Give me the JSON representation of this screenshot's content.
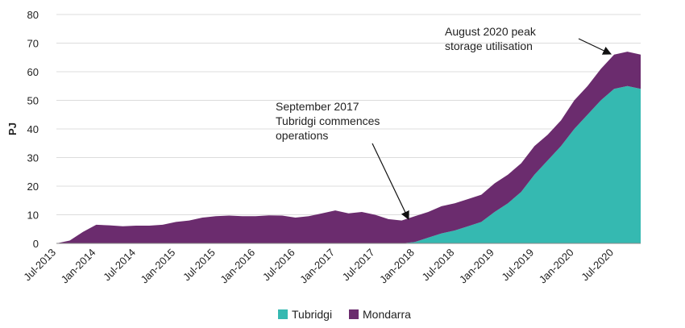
{
  "chart_data": {
    "type": "stacked-area",
    "y_label": "PJ",
    "categories": [
      "Jul-2013",
      null,
      null,
      "Jan-2014",
      null,
      null,
      "Jul-2014",
      null,
      null,
      "Jan-2015",
      null,
      null,
      "Jul-2015",
      null,
      null,
      "Jan-2016",
      null,
      null,
      "Jul-2016",
      null,
      null,
      "Jan-2017",
      null,
      null,
      "Jul-2017",
      null,
      null,
      "Jan-2018",
      null,
      null,
      "Jul-2018",
      null,
      null,
      "Jan-2019",
      null,
      null,
      "Jul-2019",
      null,
      null,
      "Jan-2020",
      null,
      null,
      "Jul-2020",
      null,
      null
    ],
    "series": [
      {
        "name": "Tubridgi",
        "color": "#35b9b1",
        "values": [
          0,
          0,
          0,
          0,
          0,
          0,
          0,
          0,
          0,
          0,
          0,
          0,
          0,
          0,
          0,
          0,
          0,
          0,
          0,
          0,
          0,
          0,
          0,
          0,
          0,
          0,
          0,
          0.5,
          2,
          3.5,
          4.5,
          6,
          7.5,
          11,
          14,
          18,
          24,
          29,
          34,
          40,
          45,
          50,
          54,
          55,
          54
        ]
      },
      {
        "name": "Mondarra",
        "color": "#6b2c6e",
        "values": [
          0,
          1,
          4,
          6.5,
          6.3,
          6,
          6.2,
          6.2,
          6.5,
          7.5,
          8,
          9,
          9.5,
          9.7,
          9.5,
          9.5,
          9.8,
          9.7,
          9,
          9.5,
          10.5,
          11.5,
          10.5,
          11,
          10,
          8.5,
          8,
          9,
          9,
          9.5,
          9.5,
          9.5,
          9.5,
          10,
          10,
          10,
          10,
          9,
          9,
          10,
          10,
          11,
          12,
          12,
          12
        ]
      }
    ],
    "ylim": [
      0,
      80
    ],
    "yticks": [
      0,
      10,
      20,
      30,
      40,
      50,
      60,
      70,
      80
    ],
    "grid": true,
    "legend": "bottom",
    "annotations": [
      {
        "lines": [
          "September 2017",
          "Tubridgi commences",
          "operations"
        ]
      },
      {
        "lines": [
          "August 2020 peak",
          "storage utilisation"
        ]
      }
    ]
  }
}
